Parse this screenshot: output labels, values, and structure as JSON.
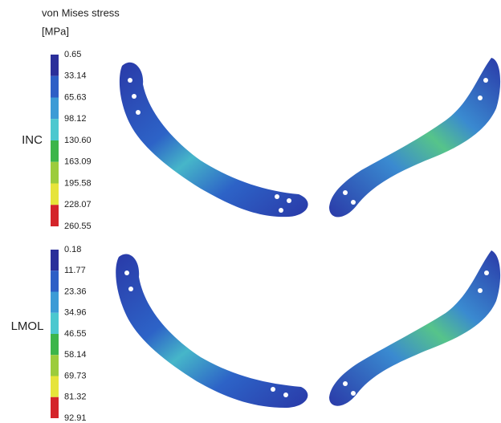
{
  "header": {
    "title": "von Mises stress",
    "unit": "[MPa]"
  },
  "panels": [
    {
      "label": "INC",
      "scale": [
        "0.65",
        "33.14",
        "65.63",
        "98.12",
        "130.60",
        "163.09",
        "195.58",
        "228.07",
        "260.55"
      ]
    },
    {
      "label": "LMOL",
      "scale": [
        "0.18",
        "11.77",
        "23.36",
        "34.96",
        "46.55",
        "58.14",
        "69.73",
        "81.32",
        "92.91"
      ]
    }
  ]
}
